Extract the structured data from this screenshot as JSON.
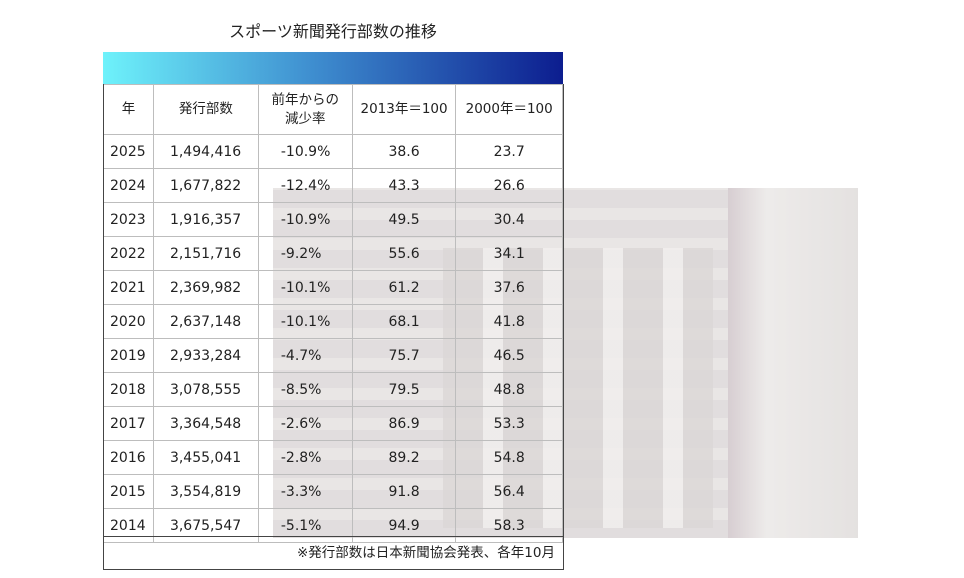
{
  "title": "スポーツ新聞発行部数の推移",
  "colors": {
    "band_start": "#6ef2fb",
    "band_end": "#0c1d8f"
  },
  "table": {
    "headers": [
      "年",
      "発行部数",
      "前年からの減少率",
      "2013年＝100",
      "2000年＝100"
    ],
    "header_rate_lines": [
      "前年からの",
      "減少率"
    ],
    "rows": [
      [
        "2025",
        "1,494,416",
        "-10.9%",
        "38.6",
        "23.7"
      ],
      [
        "2024",
        "1,677,822",
        "-12.4%",
        "43.3",
        "26.6"
      ],
      [
        "2023",
        "1,916,357",
        "-10.9%",
        "49.5",
        "30.4"
      ],
      [
        "2022",
        "2,151,716",
        "-9.2%",
        "55.6",
        "34.1"
      ],
      [
        "2021",
        "2,369,982",
        "-10.1%",
        "61.2",
        "37.6"
      ],
      [
        "2020",
        "2,637,148",
        "-10.1%",
        "68.1",
        "41.8"
      ],
      [
        "2019",
        "2,933,284",
        "-4.7%",
        "75.7",
        "46.5"
      ],
      [
        "2018",
        "3,078,555",
        "-8.5%",
        "79.5",
        "48.8"
      ],
      [
        "2017",
        "3,364,548",
        "-2.6%",
        "86.9",
        "53.3"
      ],
      [
        "2016",
        "3,455,041",
        "-2.8%",
        "89.2",
        "54.8"
      ],
      [
        "2015",
        "3,554,819",
        "-3.3%",
        "91.8",
        "56.4"
      ],
      [
        "2014",
        "3,675,547",
        "-5.1%",
        "94.9",
        "58.3"
      ]
    ]
  },
  "note": "※発行部数は日本新聞協会発表、各年10月"
}
